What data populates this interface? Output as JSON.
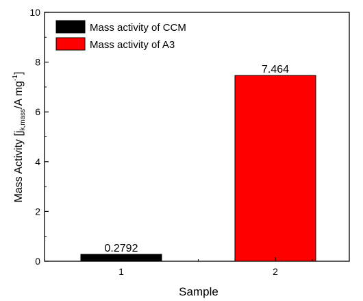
{
  "chart_data": {
    "type": "bar",
    "categories": [
      "1",
      "2"
    ],
    "series": [
      {
        "name": "Mass activity of CCM",
        "values": [
          0.2792,
          null
        ],
        "color": "#000000"
      },
      {
        "name": "Mass activity of A3",
        "values": [
          null,
          7.464
        ],
        "color": "#ff0000"
      }
    ],
    "bar_values": [
      0.2792,
      7.464
    ],
    "bar_colors": [
      "#000000",
      "#ff0000"
    ],
    "data_labels": [
      "0.2792",
      "7.464"
    ],
    "xlabel": "Sample",
    "ylabel": "Mass Activity [j",
    "ylabel_sub": "k,mass",
    "ylabel_tail": "/A mg",
    "ylabel_sup": "-1",
    "ylabel_end": "]",
    "ylim": [
      0,
      10
    ],
    "yticks": [
      "0",
      "2",
      "4",
      "6",
      "8",
      "10"
    ],
    "legend_position": "top-left",
    "grid": false
  }
}
